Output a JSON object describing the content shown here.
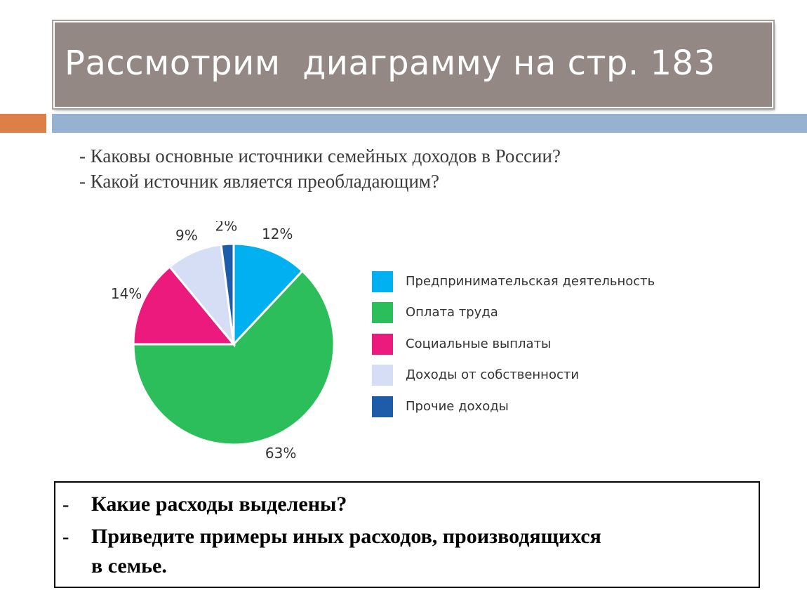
{
  "slide": {
    "title": "Рассмотрим  диаграмму на стр. 183",
    "questions": [
      "- Каковы основные источники семейных доходов в России?",
      "- Какой источник является преобладающим?"
    ],
    "bottom_questions": {
      "dash": "-",
      "q1": "Какие расходы выделены?",
      "q2_line1": "Приведите примеры иных расходов, производящихся",
      "q2_line2": "в семье."
    },
    "colors": {
      "title_bg": "#938883",
      "accent_orange": "#dd8048",
      "accent_blue": "#95b3d0"
    }
  },
  "chart_data": {
    "type": "pie",
    "title": "",
    "slices": [
      {
        "label": "Предпринимательская деятельность",
        "value": 12,
        "display": "12%",
        "color": "#00b0f0"
      },
      {
        "label": "Оплата труда",
        "value": 63,
        "display": "63%",
        "color": "#2dbe5c"
      },
      {
        "label": "Социальные выплаты",
        "value": 14,
        "display": "14%",
        "color": "#ec1a7d"
      },
      {
        "label": "Доходы от собственности",
        "value": 9,
        "display": "9%",
        "color": "#d6def6"
      },
      {
        "label": "Прочие доходы",
        "value": 2,
        "display": "2%",
        "color": "#1e5ba8"
      }
    ],
    "start": "top, clockwise",
    "legend_position": "right"
  }
}
